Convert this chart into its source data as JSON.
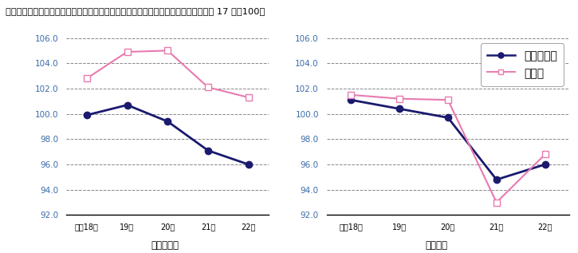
{
  "title_part1": "図１－３　主な産業別賃金指数の推移（現金給与総額、規模３０人以上）",
  "title_part2": "（平成 17 年＝100）",
  "x_labels": [
    "平成18年",
    "19年",
    "20年",
    "21年",
    "22年"
  ],
  "left_chart": {
    "subtitle": "〈鳥取県〉",
    "series1_label": "調査産業計",
    "series1_values": [
      99.9,
      100.7,
      99.4,
      97.1,
      96.0
    ],
    "series2_label": "製造業",
    "series2_values": [
      102.8,
      104.9,
      105.0,
      102.1,
      101.3
    ]
  },
  "right_chart": {
    "subtitle": "〈全国〉",
    "series1_label": "調査産業計",
    "series1_values": [
      101.1,
      100.4,
      99.7,
      94.8,
      96.0
    ],
    "series2_label": "製造業",
    "series2_values": [
      101.5,
      101.2,
      101.1,
      93.0,
      96.8
    ]
  },
  "ylim": [
    92.0,
    106.0
  ],
  "yticks": [
    92.0,
    94.0,
    96.0,
    98.0,
    100.0,
    102.0,
    104.0,
    106.0
  ],
  "series1_color": "#1a1a6e",
  "series2_color": "#e87ab0",
  "series1_marker": "o",
  "series2_marker": "s",
  "bg_color": "#ffffff",
  "grid_color": "#888888",
  "axis_label_color": "#3a6ca8",
  "markersize1": 6,
  "markersize2": 6,
  "linewidth1": 2.0,
  "linewidth2": 1.5
}
